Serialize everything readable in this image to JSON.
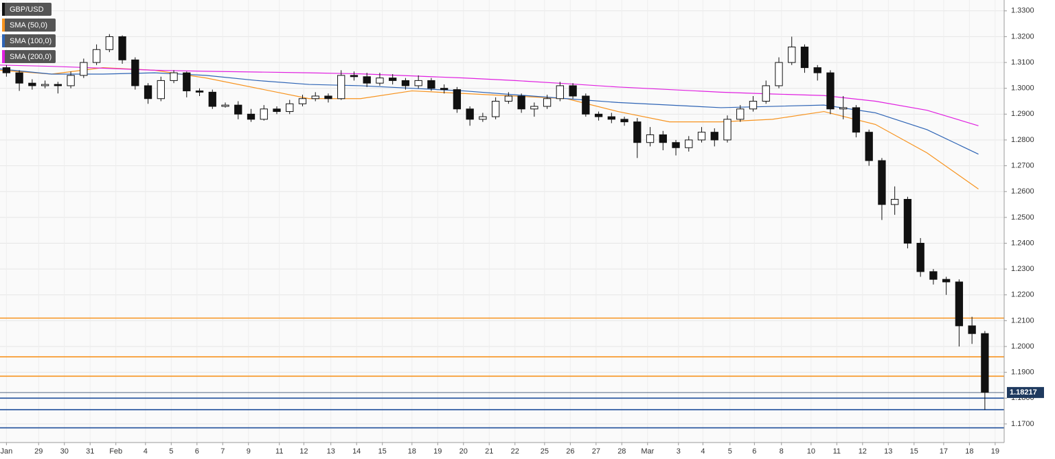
{
  "chart_data": {
    "type": "candlestick",
    "legend": [
      "GBP/USD",
      "SMA (50,0)",
      "SMA (100,0)",
      "SMA (200,0)"
    ],
    "legend_colors": [
      "#111111",
      "#f7931e",
      "#2e64b5",
      "#e020e0"
    ],
    "ylim": [
      1.1628,
      1.3342
    ],
    "yticks": [
      {
        "value": 1.17,
        "label": "1.1700"
      },
      {
        "value": 1.18,
        "label": "1.1800"
      },
      {
        "value": 1.19,
        "label": "1.1900"
      },
      {
        "value": 1.2,
        "label": "1.2000"
      },
      {
        "value": 1.21,
        "label": "1.2100"
      },
      {
        "value": 1.22,
        "label": "1.2200"
      },
      {
        "value": 1.23,
        "label": "1.2300"
      },
      {
        "value": 1.24,
        "label": "1.2400"
      },
      {
        "value": 1.25,
        "label": "1.2500"
      },
      {
        "value": 1.26,
        "label": "1.2600"
      },
      {
        "value": 1.27,
        "label": "1.2700"
      },
      {
        "value": 1.28,
        "label": "1.2800"
      },
      {
        "value": 1.29,
        "label": "1.2900"
      },
      {
        "value": 1.3,
        "label": "1.3000"
      },
      {
        "value": 1.31,
        "label": "1.3100"
      },
      {
        "value": 1.32,
        "label": "1.3200"
      },
      {
        "value": 1.33,
        "label": "1.3300"
      }
    ],
    "xlim": [
      0,
      78
    ],
    "xticks": [
      {
        "value": 0.5,
        "label": "Jan"
      },
      {
        "value": 3,
        "label": "29"
      },
      {
        "value": 5,
        "label": "30"
      },
      {
        "value": 7,
        "label": "31"
      },
      {
        "value": 9,
        "label": "Feb"
      },
      {
        "value": 11.3,
        "label": "4"
      },
      {
        "value": 13.3,
        "label": "5"
      },
      {
        "value": 15.3,
        "label": "6"
      },
      {
        "value": 17.3,
        "label": "7"
      },
      {
        "value": 19.3,
        "label": "9"
      },
      {
        "value": 21.7,
        "label": "11"
      },
      {
        "value": 23.6,
        "label": "12"
      },
      {
        "value": 25.7,
        "label": "13"
      },
      {
        "value": 27.7,
        "label": "14"
      },
      {
        "value": 29.7,
        "label": "15"
      },
      {
        "value": 32,
        "label": "18"
      },
      {
        "value": 34,
        "label": "19"
      },
      {
        "value": 36,
        "label": "20"
      },
      {
        "value": 38,
        "label": "21"
      },
      {
        "value": 40,
        "label": "22"
      },
      {
        "value": 42.3,
        "label": "25"
      },
      {
        "value": 44.3,
        "label": "26"
      },
      {
        "value": 46.3,
        "label": "27"
      },
      {
        "value": 48.3,
        "label": "28"
      },
      {
        "value": 50.3,
        "label": "Mar"
      },
      {
        "value": 52.7,
        "label": "3"
      },
      {
        "value": 54.6,
        "label": "4"
      },
      {
        "value": 56.7,
        "label": "5"
      },
      {
        "value": 58.6,
        "label": "6"
      },
      {
        "value": 60.7,
        "label": "8"
      },
      {
        "value": 63,
        "label": "10"
      },
      {
        "value": 65,
        "label": "11"
      },
      {
        "value": 67,
        "label": "12"
      },
      {
        "value": 69,
        "label": "13"
      },
      {
        "value": 71,
        "label": "15"
      },
      {
        "value": 73.3,
        "label": "17"
      },
      {
        "value": 75.3,
        "label": "18"
      },
      {
        "value": 77.3,
        "label": "19"
      }
    ],
    "grid": true,
    "candles": {
      "open": [
        1.308,
        1.306,
        1.302,
        1.301,
        1.3015,
        1.301,
        1.305,
        1.31,
        1.315,
        1.32,
        1.311,
        1.301,
        1.296,
        1.303,
        1.306,
        1.299,
        1.2985,
        1.293,
        1.2935,
        1.29,
        1.288,
        1.292,
        1.291,
        1.294,
        1.296,
        1.297,
        1.296,
        1.305,
        1.3045,
        1.302,
        1.304,
        1.303,
        1.301,
        1.303,
        1.3,
        1.2995,
        1.292,
        1.288,
        1.289,
        1.295,
        1.297,
        1.292,
        1.293,
        1.296,
        1.301,
        1.297,
        1.29,
        1.289,
        1.288,
        1.287,
        1.279,
        1.282,
        1.279,
        1.277,
        1.28,
        1.283,
        1.28,
        1.288,
        1.292,
        1.295,
        1.301,
        1.31,
        1.316,
        1.308,
        1.306,
        1.292,
        1.2925,
        1.283,
        1.272,
        1.255,
        1.257,
        1.24,
        1.229,
        1.226,
        1.225,
        1.208,
        1.205
      ],
      "high": [
        1.309,
        1.307,
        1.3035,
        1.303,
        1.3025,
        1.3065,
        1.3115,
        1.317,
        1.321,
        1.3205,
        1.312,
        1.302,
        1.3045,
        1.307,
        1.3065,
        1.3,
        1.2995,
        1.2945,
        1.295,
        1.292,
        1.2935,
        1.293,
        1.2955,
        1.2975,
        1.2985,
        1.298,
        1.307,
        1.3065,
        1.306,
        1.306,
        1.3055,
        1.304,
        1.305,
        1.304,
        1.3015,
        1.3005,
        1.293,
        1.2905,
        1.2965,
        1.2985,
        1.298,
        1.2945,
        1.2975,
        1.3025,
        1.302,
        1.298,
        1.291,
        1.2905,
        1.289,
        1.2885,
        1.285,
        1.2835,
        1.28,
        1.2815,
        1.285,
        1.2845,
        1.2895,
        1.2935,
        1.297,
        1.303,
        1.312,
        1.32,
        1.317,
        1.309,
        1.307,
        1.297,
        1.2935,
        1.284,
        1.273,
        1.262,
        1.258,
        1.242,
        1.23,
        1.227,
        1.226,
        1.2115,
        1.206
      ],
      "low": [
        1.3045,
        1.299,
        1.2995,
        1.3,
        1.298,
        1.3,
        1.304,
        1.309,
        1.314,
        1.3095,
        1.2995,
        1.294,
        1.295,
        1.302,
        1.2965,
        1.297,
        1.292,
        1.2925,
        1.288,
        1.287,
        1.2875,
        1.29,
        1.29,
        1.293,
        1.295,
        1.2945,
        1.2955,
        1.303,
        1.3005,
        1.301,
        1.3015,
        1.2995,
        1.3,
        1.299,
        1.298,
        1.2905,
        1.2855,
        1.287,
        1.288,
        1.294,
        1.2905,
        1.289,
        1.292,
        1.295,
        1.296,
        1.289,
        1.2875,
        1.2865,
        1.2855,
        1.273,
        1.2775,
        1.276,
        1.274,
        1.2755,
        1.279,
        1.2775,
        1.279,
        1.287,
        1.291,
        1.294,
        1.3,
        1.309,
        1.306,
        1.303,
        1.29,
        1.288,
        1.281,
        1.27,
        1.249,
        1.251,
        1.238,
        1.227,
        1.224,
        1.22,
        1.2,
        1.201,
        1.1755
      ],
      "close": [
        1.306,
        1.302,
        1.301,
        1.3015,
        1.301,
        1.305,
        1.31,
        1.315,
        1.32,
        1.311,
        1.301,
        1.296,
        1.303,
        1.306,
        1.299,
        1.2985,
        1.293,
        1.2935,
        1.29,
        1.288,
        1.292,
        1.291,
        1.294,
        1.296,
        1.297,
        1.296,
        1.305,
        1.3045,
        1.302,
        1.304,
        1.303,
        1.301,
        1.303,
        1.3,
        1.2995,
        1.292,
        1.288,
        1.289,
        1.295,
        1.297,
        1.292,
        1.293,
        1.296,
        1.301,
        1.297,
        1.29,
        1.289,
        1.288,
        1.287,
        1.279,
        1.282,
        1.279,
        1.277,
        1.28,
        1.283,
        1.28,
        1.288,
        1.292,
        1.295,
        1.301,
        1.31,
        1.316,
        1.308,
        1.306,
        1.292,
        1.2925,
        1.283,
        1.272,
        1.255,
        1.257,
        1.24,
        1.229,
        1.226,
        1.225,
        1.208,
        1.205,
        1.1822
      ]
    },
    "series": [
      {
        "name": "SMA (50,0)",
        "color": "#f7931e",
        "x": [
          0,
          4,
          8,
          12,
          16,
          20,
          24,
          28,
          32,
          36,
          40,
          44,
          48,
          52,
          56,
          60,
          64,
          68,
          72,
          76
        ],
        "values": [
          1.307,
          1.3055,
          1.308,
          1.307,
          1.304,
          1.3,
          1.296,
          1.296,
          1.299,
          1.298,
          1.297,
          1.296,
          1.291,
          1.287,
          1.287,
          1.288,
          1.291,
          1.286,
          1.275,
          1.261
        ]
      },
      {
        "name": "SMA (100,0)",
        "color": "#2e64b5",
        "x": [
          0,
          4,
          8,
          12,
          16,
          20,
          24,
          28,
          32,
          36,
          40,
          44,
          48,
          52,
          56,
          60,
          64,
          68,
          72,
          76
        ],
        "values": [
          1.3075,
          1.3055,
          1.3055,
          1.306,
          1.305,
          1.303,
          1.3015,
          1.301,
          1.3,
          1.299,
          1.2975,
          1.296,
          1.2945,
          1.2935,
          1.2925,
          1.293,
          1.2935,
          1.2905,
          1.284,
          1.2745
        ]
      },
      {
        "name": "SMA (200,0)",
        "color": "#e020e0",
        "x": [
          0,
          4,
          8,
          12,
          16,
          20,
          24,
          28,
          32,
          36,
          40,
          44,
          48,
          52,
          56,
          60,
          64,
          68,
          72,
          76
        ],
        "values": [
          1.309,
          1.3085,
          1.3078,
          1.307,
          1.3066,
          1.3063,
          1.306,
          1.3056,
          1.3048,
          1.304,
          1.303,
          1.3018,
          1.3005,
          1.2995,
          1.2985,
          1.2978,
          1.2972,
          1.295,
          1.2915,
          1.2855
        ]
      }
    ],
    "levels": [
      {
        "value": 1.211,
        "color": "#f7931e"
      },
      {
        "value": 1.196,
        "color": "#f7931e"
      },
      {
        "value": 1.1885,
        "color": "#f7931e"
      },
      {
        "value": 1.18,
        "color": "#1f4e9a"
      },
      {
        "value": 1.1755,
        "color": "#1f4e9a"
      },
      {
        "value": 1.1685,
        "color": "#1f4e9a"
      }
    ],
    "last_price": 1.18217
  }
}
